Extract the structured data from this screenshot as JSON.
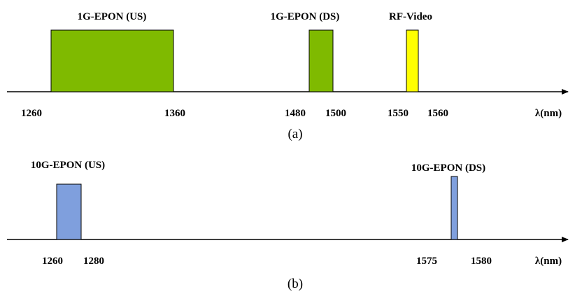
{
  "panel_a": {
    "caption": "(a)",
    "unit": "λ(nm)",
    "bands": [
      {
        "label": "1G-EPON (US)",
        "start": 1260,
        "end": 1360,
        "color": "#7fba00"
      },
      {
        "label": "1G-EPON (DS)",
        "start": 1480,
        "end": 1500,
        "color": "#7fba00"
      },
      {
        "label": "RF-Video",
        "start": 1550,
        "end": 1560,
        "color": "#ffff00"
      }
    ],
    "ticks": [
      "1260",
      "1360",
      "1480",
      "1500",
      "1550",
      "1560"
    ]
  },
  "panel_b": {
    "caption": "(b)",
    "unit": "λ(nm)",
    "bands": [
      {
        "label": "10G-EPON (US)",
        "start": 1260,
        "end": 1280,
        "color": "#7f9fdd"
      },
      {
        "label": "10G-EPON (DS)",
        "start": 1575,
        "end": 1580,
        "color": "#7f9fdd"
      }
    ],
    "ticks": [
      "1260",
      "1280",
      "1575",
      "1580"
    ]
  }
}
